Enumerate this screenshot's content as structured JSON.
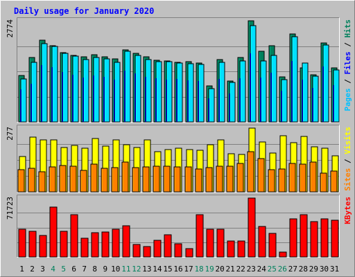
{
  "chart_data": {
    "type": "bar",
    "title": "Daily usage for January 2020",
    "colors": {
      "background": "#C0C0C0",
      "plot_background": "#C0C0C0",
      "grid": "#808080",
      "title": "#0000FF",
      "hits": "#00805C",
      "files": "#00C0FF",
      "pages": "#00E0FF",
      "visits": "#FFFF00",
      "sites": "#FF8000",
      "kbytes": "#FF0000",
      "weekday_label": "#000000",
      "weekend_label": "#00805C"
    },
    "days": [
      "1",
      "2",
      "3",
      "4",
      "5",
      "6",
      "7",
      "8",
      "9",
      "10",
      "11",
      "12",
      "13",
      "14",
      "15",
      "16",
      "17",
      "18",
      "19",
      "20",
      "21",
      "22",
      "23",
      "24",
      "25",
      "26",
      "27",
      "28",
      "29",
      "30",
      "31"
    ],
    "weekend_days": [
      "4",
      "5",
      "11",
      "12",
      "18",
      "19",
      "25",
      "26"
    ],
    "panels": [
      {
        "id": "hits",
        "scale_label": "2774",
        "max": 2774,
        "side_label_parts": [
          {
            "text": "Pages",
            "color": "#00C0FF"
          },
          {
            "text": " / ",
            "color": "#000000"
          },
          {
            "text": "Files",
            "color": "#0000FF"
          },
          {
            "text": " / ",
            "color": "#000000"
          },
          {
            "text": "Hits",
            "color": "#00805C"
          }
        ],
        "series": [
          {
            "name": "Hits",
            "color": "#00805C",
            "values": [
              1270,
              1760,
              2250,
              2090,
              1900,
              1830,
              1780,
              1840,
              1780,
              1720,
              1970,
              1880,
              1790,
              1700,
              1680,
              1640,
              1650,
              1620,
              980,
              1710,
              1130,
              1770,
              2774,
              1940,
              2090,
              1240,
              2420,
              1480,
              1290,
              2160,
              1480
            ]
          },
          {
            "name": "Files",
            "color": "#00E0FF",
            "values": [
              1180,
              1630,
              2140,
              2070,
              1880,
              1800,
              1710,
              1770,
              1720,
              1640,
              1940,
              1820,
              1710,
              1650,
              1650,
              1610,
              1600,
              1570,
              920,
              1640,
              1080,
              1680,
              2650,
              1680,
              1820,
              1160,
              2330,
              1610,
              1250,
              2100,
              1420
            ]
          },
          {
            "name": "Pages",
            "color": "#0000A0",
            "values": [
              900,
              1040,
              1550,
              1500,
              1370,
              1300,
              1220,
              1280,
              1240,
              1160,
              1400,
              1330,
              1230,
              1200,
              1150,
              1170,
              1140,
              1120,
              640,
              1180,
              780,
              1200,
              1880,
              1220,
              1350,
              860,
              1670,
              1150,
              930,
              1520,
              1000
            ]
          }
        ]
      },
      {
        "id": "visits",
        "scale_label": "277",
        "max": 277,
        "side_label_parts": [
          {
            "text": "Sites",
            "color": "#FF8000"
          },
          {
            "text": " / ",
            "color": "#000000"
          },
          {
            "text": "Visits",
            "color": "#FFFF00"
          }
        ],
        "series": [
          {
            "name": "Visits",
            "color": "#FFFF00",
            "values": [
              154,
              237,
              227,
              227,
              193,
              201,
              189,
              232,
              198,
              227,
              205,
              193,
              227,
              174,
              185,
              191,
              184,
              181,
              205,
              227,
              165,
              162,
              277,
              218,
              168,
              245,
              215,
              240,
              197,
              189,
              156
            ]
          },
          {
            "name": "Sites",
            "color": "#FF8000",
            "values": [
              96,
              102,
              88,
              108,
              114,
              110,
              92,
              119,
              102,
              104,
              129,
              106,
              108,
              110,
              110,
              108,
              108,
              98,
              104,
              110,
              110,
              123,
              174,
              144,
              96,
              98,
              123,
              119,
              130,
              81,
              91
            ]
          }
        ]
      },
      {
        "id": "kbytes",
        "scale_label": "71723",
        "max": 71723,
        "side_label_parts": [
          {
            "text": "KBytes",
            "color": "#FF0000"
          }
        ],
        "series": [
          {
            "name": "KBytes",
            "color": "#FF0000",
            "values": [
              33800,
              31300,
              26000,
              60500,
              31300,
              51600,
              23200,
              29200,
              30100,
              33500,
              38300,
              15200,
              12800,
              20100,
              26800,
              15700,
              10400,
              51600,
              34100,
              34100,
              19100,
              19100,
              71723,
              37300,
              28900,
              5900,
              46800,
              51600,
              43300,
              46100,
              44400
            ]
          }
        ]
      }
    ]
  }
}
